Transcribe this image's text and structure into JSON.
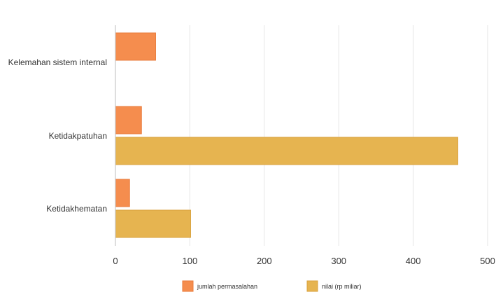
{
  "chart_data": {
    "type": "bar",
    "orientation": "horizontal",
    "categories": [
      "Kelemahan sistem internal",
      "Ketidakpatuhan",
      "Ketidakhematan"
    ],
    "series": [
      {
        "name": "jumlah permasalahan",
        "values": [
          54,
          35,
          19
        ],
        "color": "#F58D4E"
      },
      {
        "name": "nilai (rp miliar)",
        "values": [
          null,
          460,
          101
        ],
        "color": "#E6B450"
      }
    ],
    "xticks": [
      0,
      100,
      200,
      300,
      400,
      500
    ],
    "xlim": [
      0,
      500
    ],
    "grid": true,
    "legend_position": "bottom"
  }
}
